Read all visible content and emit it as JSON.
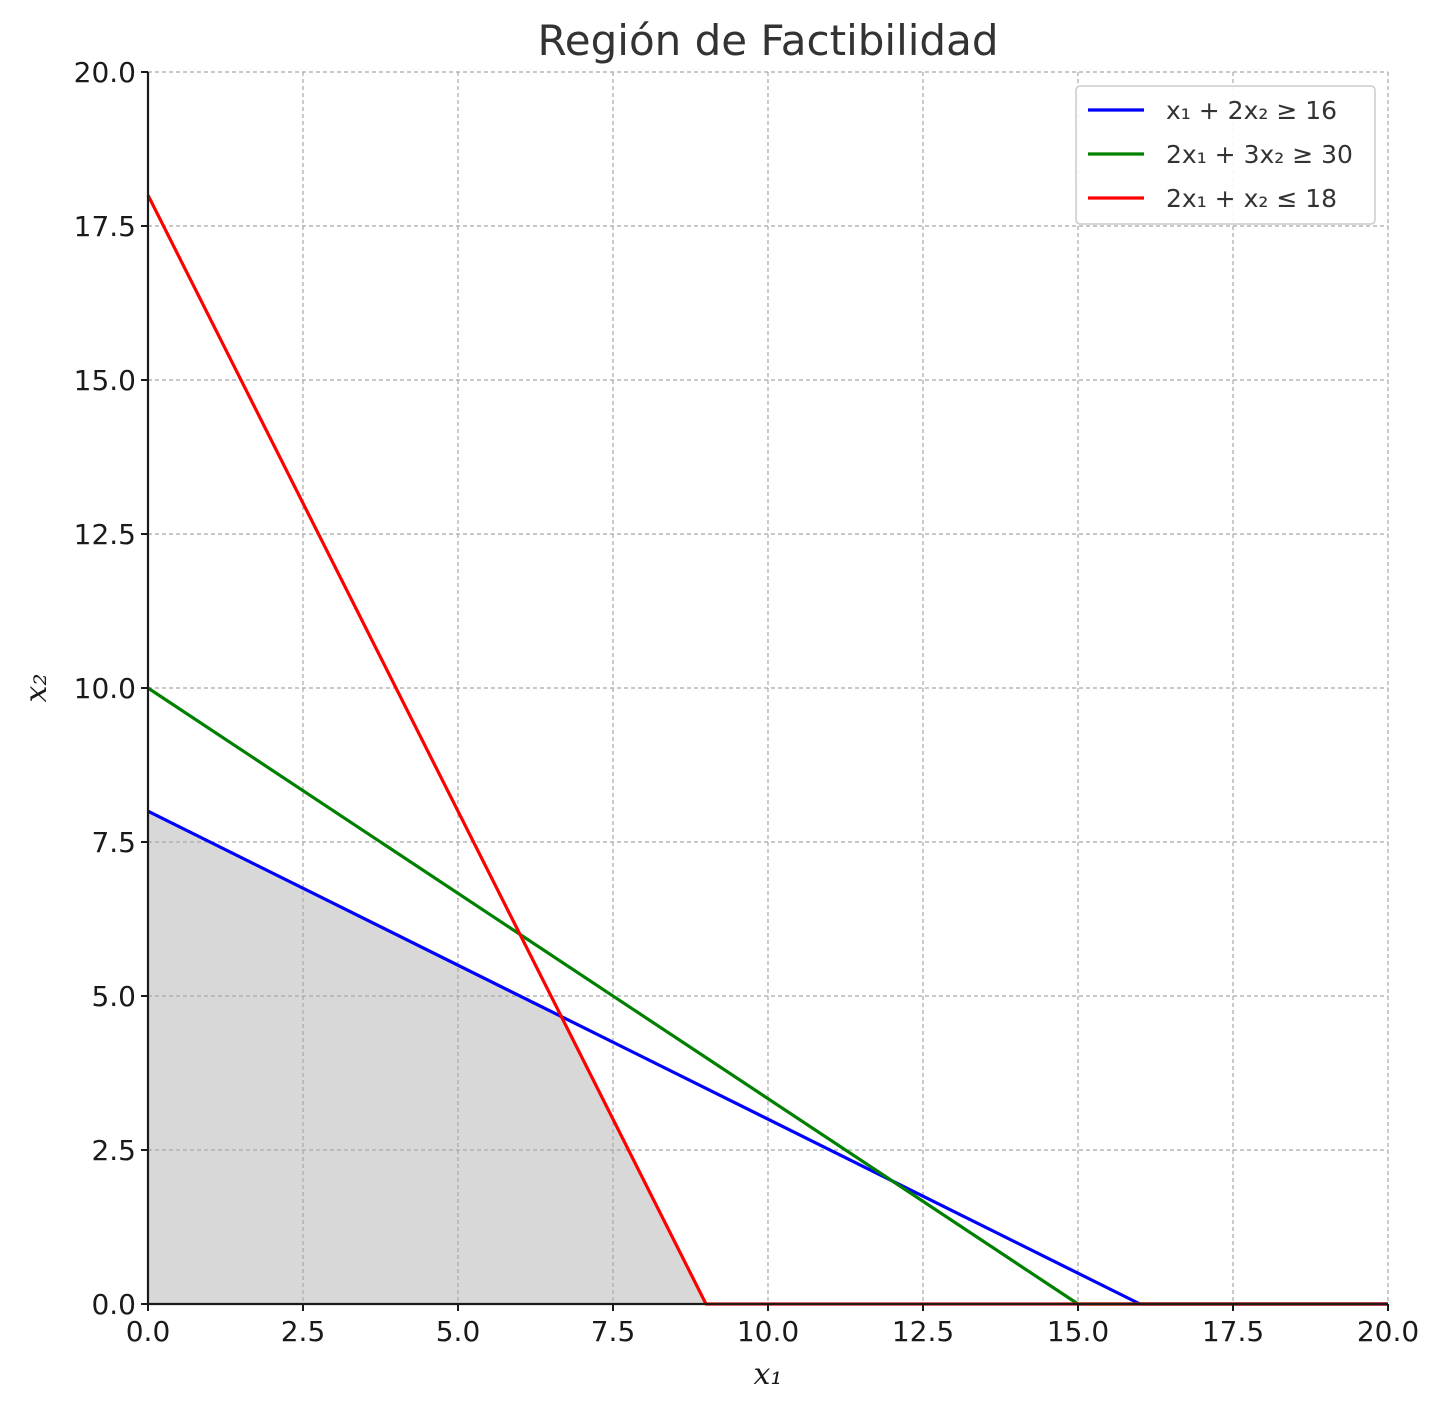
{
  "chart_data": {
    "type": "line",
    "title": "Región de Factibilidad",
    "xlabel": "x₁",
    "ylabel": "x₂",
    "xlim": [
      0,
      20
    ],
    "ylim": [
      0,
      20
    ],
    "x_ticks": [
      "0.0",
      "2.5",
      "5.0",
      "7.5",
      "10.0",
      "12.5",
      "15.0",
      "17.5",
      "20.0"
    ],
    "y_ticks": [
      "0.0",
      "2.5",
      "5.0",
      "7.5",
      "10.0",
      "12.5",
      "15.0",
      "17.5",
      "20.0"
    ],
    "grid": true,
    "legend_position": "top-right",
    "series": [
      {
        "name": "x₁ + 2x₂ ≥ 16",
        "color": "#0000ff",
        "points": [
          [
            0,
            8
          ],
          [
            16,
            0
          ],
          [
            20,
            0
          ]
        ]
      },
      {
        "name": "2x₁ + 3x₂ ≥ 30",
        "color": "#008000",
        "points": [
          [
            0,
            10
          ],
          [
            15,
            0
          ],
          [
            20,
            0
          ]
        ]
      },
      {
        "name": "2x₁ + x₂ ≤ 18",
        "color": "#ff0000",
        "points": [
          [
            0,
            18
          ],
          [
            9,
            0
          ],
          [
            20,
            0
          ]
        ]
      }
    ],
    "feasible_region": {
      "color": "#d8d8d8",
      "vertices": [
        [
          0,
          0
        ],
        [
          0,
          8
        ],
        [
          6.667,
          4.667
        ],
        [
          9,
          0
        ]
      ]
    }
  }
}
